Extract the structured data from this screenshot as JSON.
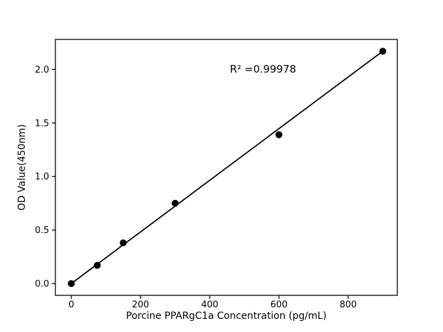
{
  "chart_data": {
    "type": "scatter",
    "title": "",
    "xlabel": "Porcine PPARgC1a Concentration (pg/mL)",
    "ylabel": "OD Value(450nm)",
    "points": [
      {
        "x": 0,
        "y": 0.0
      },
      {
        "x": 75,
        "y": 0.17
      },
      {
        "x": 150,
        "y": 0.38
      },
      {
        "x": 300,
        "y": 0.75
      },
      {
        "x": 600,
        "y": 1.39
      },
      {
        "x": 900,
        "y": 2.17
      }
    ],
    "trendline": {
      "x1": 0,
      "y1": 0.0,
      "x2": 900,
      "y2": 2.17
    },
    "annotation": {
      "text": "R² =0.99978",
      "x": 554,
      "y": 2.0
    },
    "x_ticks": [
      "0",
      "200",
      "400",
      "600",
      "800"
    ],
    "y_ticks": [
      "0.0",
      "0.5",
      "1.0",
      "1.5",
      "2.0"
    ],
    "xlim": [
      -46,
      942
    ],
    "ylim": [
      -0.11,
      2.28
    ],
    "grid": false,
    "legend": "none",
    "colors": {
      "marker": "#000000",
      "line": "#000000",
      "axis": "#000000",
      "text": "#000000",
      "background": "#ffffff"
    }
  }
}
